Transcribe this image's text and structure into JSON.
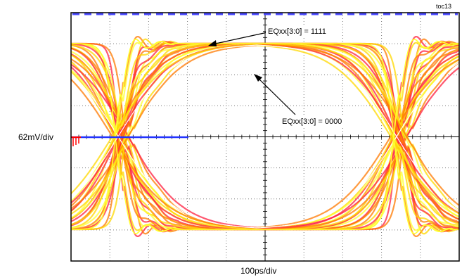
{
  "figure_id": "toc13",
  "chart_data": {
    "type": "eye-diagram",
    "title": "",
    "xlabel": "100ps/div",
    "ylabel": "62mV/div",
    "x_divisions": 10,
    "y_divisions": 8,
    "grid": true,
    "colors": {
      "trace_hot": "#ff2040",
      "trace_mid": "#ff7a00",
      "trace_warm": "#ffd800",
      "trace_core": "#ffff30",
      "trace_edge": "#ffffff",
      "baseline": "#2233ff",
      "marker": "#ff0000",
      "top_marker": "#4a4aff"
    },
    "annotations": [
      {
        "text": "EQxx[3:0] = 1111",
        "points_to": "fastest-rising-edge"
      },
      {
        "text": "EQxx[3:0] = 0000",
        "points_to": "slowest-rising-edge"
      }
    ]
  }
}
